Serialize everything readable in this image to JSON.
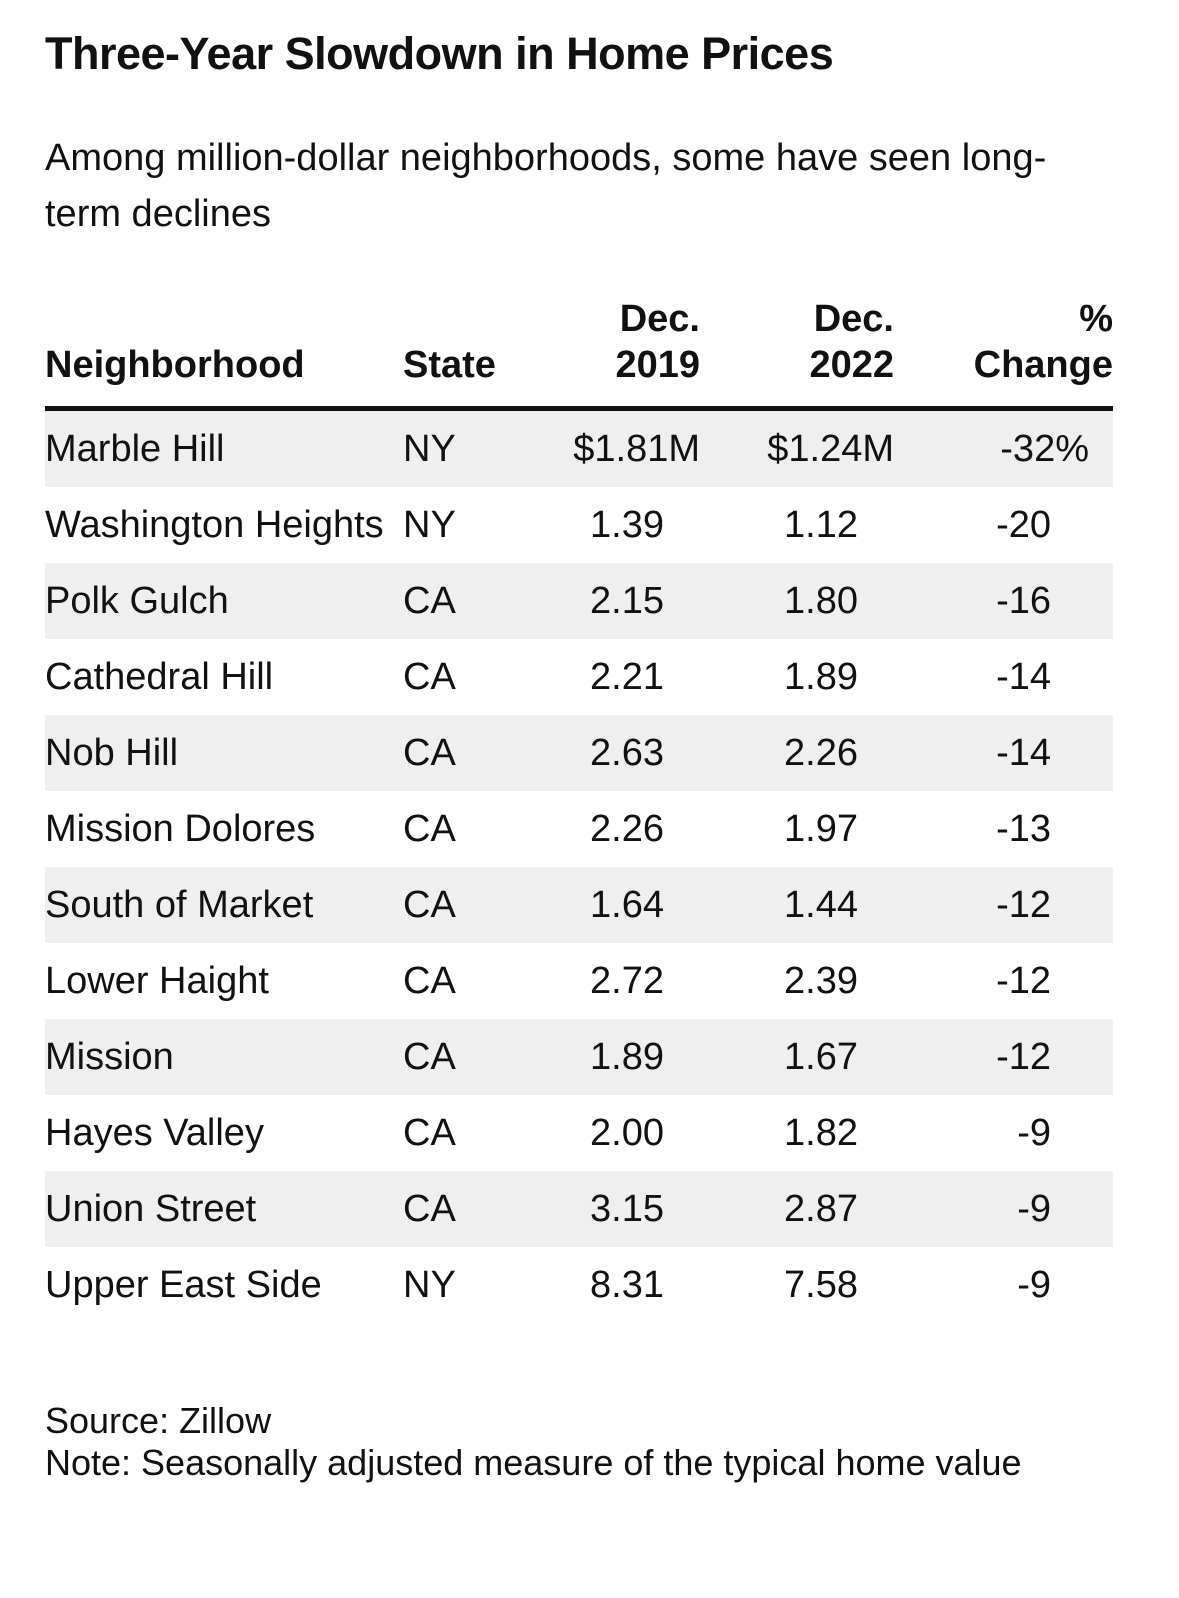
{
  "chart_data": {
    "type": "table",
    "title": "Three-Year Slowdown in Home Prices",
    "subtitle": "Among million-dollar neighborhoods, some have seen long-term declines",
    "columns": [
      {
        "line1": "",
        "line2": "Neighborhood"
      },
      {
        "line1": "",
        "line2": "State"
      },
      {
        "line1": "Dec.",
        "line2": "2019"
      },
      {
        "line1": "Dec.",
        "line2": "2022"
      },
      {
        "line1": "%",
        "line2": "Change"
      }
    ],
    "rows": [
      {
        "neighborhood": "Marble Hill",
        "state": "NY",
        "dec_2019": "$1.81M",
        "dec_2022": "$1.24M",
        "change": "-32%"
      },
      {
        "neighborhood": "Washington Heights",
        "state": "NY",
        "dec_2019": "1.39",
        "dec_2022": "1.12",
        "change": "-20"
      },
      {
        "neighborhood": "Polk Gulch",
        "state": "CA",
        "dec_2019": "2.15",
        "dec_2022": "1.80",
        "change": "-16"
      },
      {
        "neighborhood": "Cathedral Hill",
        "state": "CA",
        "dec_2019": "2.21",
        "dec_2022": "1.89",
        "change": "-14"
      },
      {
        "neighborhood": "Nob Hill",
        "state": "CA",
        "dec_2019": "2.63",
        "dec_2022": "2.26",
        "change": "-14"
      },
      {
        "neighborhood": "Mission Dolores",
        "state": "CA",
        "dec_2019": "2.26",
        "dec_2022": "1.97",
        "change": "-13"
      },
      {
        "neighborhood": "South of Market",
        "state": "CA",
        "dec_2019": "1.64",
        "dec_2022": "1.44",
        "change": "-12"
      },
      {
        "neighborhood": "Lower Haight",
        "state": "CA",
        "dec_2019": "2.72",
        "dec_2022": "2.39",
        "change": "-12"
      },
      {
        "neighborhood": "Mission",
        "state": "CA",
        "dec_2019": "1.89",
        "dec_2022": "1.67",
        "change": "-12"
      },
      {
        "neighborhood": "Hayes Valley",
        "state": "CA",
        "dec_2019": "2.00",
        "dec_2022": "1.82",
        "change": "-9"
      },
      {
        "neighborhood": "Union Street",
        "state": "CA",
        "dec_2019": "3.15",
        "dec_2022": "2.87",
        "change": "-9"
      },
      {
        "neighborhood": "Upper East Side",
        "state": "NY",
        "dec_2019": "8.31",
        "dec_2022": "7.58",
        "change": "-9"
      }
    ],
    "source": "Source: Zillow",
    "note": "Note: Seasonally adjusted measure of the typical home value",
    "colors": {
      "shade": "#efefef",
      "text": "#111111",
      "rule": "#111111"
    }
  }
}
